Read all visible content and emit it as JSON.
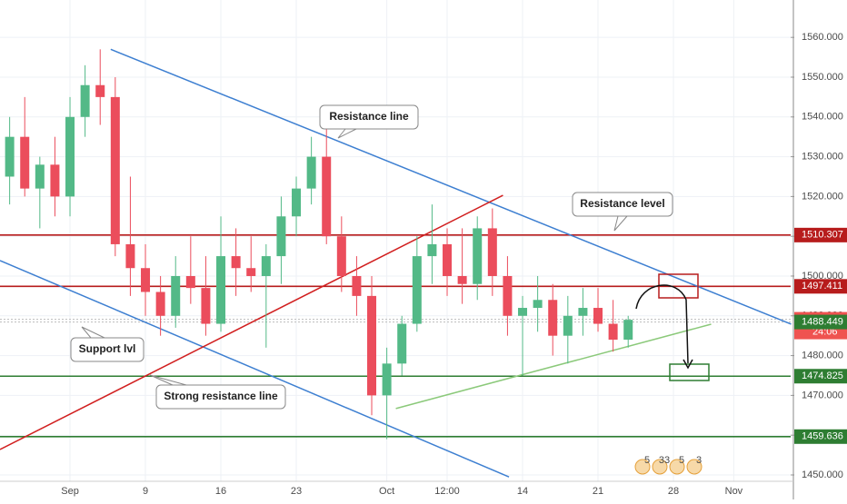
{
  "chart_data": {
    "type": "candlestick",
    "x": [
      -4,
      -3,
      -2,
      -1,
      0,
      1,
      2,
      3,
      4,
      5,
      6,
      7,
      8,
      9,
      10,
      11,
      12,
      13,
      14,
      15,
      16,
      17,
      18,
      19,
      20,
      21,
      22,
      23,
      24,
      25,
      26,
      27,
      28,
      29,
      30,
      31,
      32,
      33,
      34,
      35,
      36,
      37
    ],
    "open": [
      1525,
      1535,
      1522,
      1528,
      1520,
      1540,
      1548,
      1545,
      1508,
      1502,
      1496,
      1490,
      1500,
      1497,
      1488,
      1505,
      1502,
      1500,
      1505,
      1515,
      1522,
      1530,
      1510,
      1500,
      1495,
      1470,
      1478,
      1488,
      1505,
      1508,
      1500,
      1498,
      1512,
      1500,
      1490,
      1492,
      1494,
      1485,
      1490,
      1492,
      1488,
      1484
    ],
    "high": [
      1540,
      1545,
      1530,
      1535,
      1545,
      1553,
      1557,
      1550,
      1525,
      1508,
      1500,
      1505,
      1510,
      1505,
      1515,
      1512,
      1510,
      1508,
      1520,
      1525,
      1535,
      1537,
      1515,
      1505,
      1500,
      1482,
      1490,
      1510,
      1518,
      1512,
      1512,
      1515,
      1517,
      1505,
      1495,
      1500,
      1498,
      1495,
      1497,
      1497,
      1494,
      1490
    ],
    "low": [
      1518,
      1520,
      1512,
      1515,
      1515,
      1535,
      1538,
      1505,
      1495,
      1490,
      1485,
      1487,
      1493,
      1485,
      1486,
      1495,
      1496,
      1482,
      1498,
      1510,
      1518,
      1508,
      1496,
      1490,
      1465,
      1459,
      1475,
      1486,
      1498,
      1495,
      1493,
      1494,
      1495,
      1485,
      1475,
      1486,
      1480,
      1478,
      1485,
      1486,
      1481,
      1482
    ],
    "close": [
      1535,
      1522,
      1528,
      1520,
      1540,
      1548,
      1545,
      1508,
      1502,
      1496,
      1490,
      1500,
      1497,
      1488,
      1505,
      1502,
      1500,
      1505,
      1515,
      1522,
      1530,
      1510,
      1500,
      1495,
      1470,
      1478,
      1488,
      1505,
      1508,
      1500,
      1498,
      1512,
      1500,
      1490,
      1492,
      1494,
      1485,
      1490,
      1492,
      1488,
      1484,
      1489
    ],
    "up_color": "#53b987",
    "down_color": "#eb4d5c",
    "xlim": [
      -4.64,
      47.77
    ],
    "xticks": [
      {
        "value": 0,
        "label": "Sep"
      },
      {
        "value": 5,
        "label": "9"
      },
      {
        "value": 10,
        "label": "16"
      },
      {
        "value": 15,
        "label": "23"
      },
      {
        "value": 21,
        "label": "Oct"
      },
      {
        "value": 25,
        "label": "12:00"
      },
      {
        "value": 30,
        "label": "14"
      },
      {
        "value": 35,
        "label": "21"
      },
      {
        "value": 40,
        "label": "28"
      },
      {
        "value": 44,
        "label": "Nov"
      }
    ],
    "ylim": [
      1448.4,
      1569.4
    ],
    "yticks": [
      {
        "value": 1450,
        "label": "1450.000"
      },
      {
        "value": 1460,
        "label": "1460.000"
      },
      {
        "value": 1470,
        "label": "1470.000"
      },
      {
        "value": 1480,
        "label": "1480.000"
      },
      {
        "value": 1490,
        "label": "1490.000"
      },
      {
        "value": 1500,
        "label": "1500.000"
      },
      {
        "value": 1510,
        "label": "1510.000"
      },
      {
        "value": 1520,
        "label": "1520.000"
      },
      {
        "value": 1530,
        "label": "1530.000"
      },
      {
        "value": 1540,
        "label": "1540.000"
      },
      {
        "value": 1550,
        "label": "1550.000"
      },
      {
        "value": 1560,
        "label": "1560.000"
      }
    ],
    "grid": true,
    "levels": [
      {
        "value": 1510.307,
        "color": "#b71c1c",
        "style": "solid"
      },
      {
        "value": 1497.411,
        "color": "#b71c1c",
        "style": "solid"
      },
      {
        "value": 1489.135,
        "color": "#ef5350",
        "style": "dotted"
      },
      {
        "value": 1488.449,
        "color": "#2e7d32",
        "style": "dotted"
      },
      {
        "value": 1474.825,
        "color": "#2e7d32",
        "style": "solid"
      },
      {
        "value": 1459.636,
        "color": "#2e7d32",
        "style": "solid"
      }
    ],
    "countdown": "24:06",
    "trendlines": [
      {
        "x": [
          2.7,
          47.8
        ],
        "y": [
          1557,
          1487.9
        ],
        "color": "#3d7fd1"
      },
      {
        "x": [
          -4.64,
          29.1
        ],
        "y": [
          1503.9,
          1449.5
        ],
        "color": "#3d7fd1"
      },
      {
        "x": [
          -4.64,
          28.7
        ],
        "y": [
          1456.4,
          1520.3
        ],
        "color": "#d11f1f"
      },
      {
        "x": [
          21.6,
          42.5
        ],
        "y": [
          1466.7,
          1487.9
        ],
        "color": "#8bc97a"
      }
    ],
    "annotations": [
      "Resistance line",
      "Resistance level",
      "Support lvl",
      "Strong resistance line"
    ],
    "events": [
      "5",
      "33",
      "5",
      "3"
    ]
  }
}
